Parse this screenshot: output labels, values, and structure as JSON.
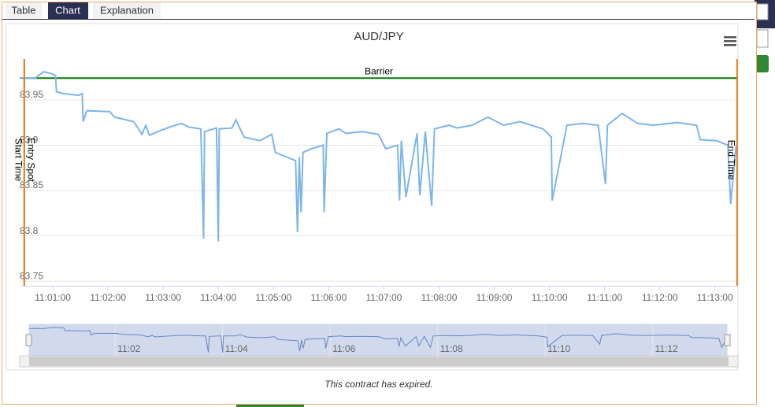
{
  "tabs": [
    "Table",
    "Chart",
    "Explanation"
  ],
  "footer": "This contract has expired.",
  "chart_data": {
    "type": "line",
    "title": "AUD/JPY",
    "color": "#7cb5ec",
    "x": [
      "11:00:24",
      "11:00:33",
      "11:00:41",
      "11:00:50",
      "11:00:58",
      "11:01:03",
      "11:01:04",
      "11:01:11",
      "11:01:28",
      "11:01:32",
      "11:01:33",
      "11:01:37",
      "11:02:02",
      "11:02:07",
      "11:02:28",
      "11:02:37",
      "11:02:41",
      "11:02:45",
      "11:02:54",
      "11:03:07",
      "11:03:20",
      "11:03:28",
      "11:03:41",
      "11:03:44",
      "11:03:45",
      "11:03:58",
      "11:04:00",
      "11:04:01",
      "11:04:15",
      "11:04:19",
      "11:04:28",
      "11:04:45",
      "11:04:58",
      "11:05:02",
      "11:05:24",
      "11:05:26",
      "11:05:28",
      "11:05:30",
      "11:05:32",
      "11:05:41",
      "11:05:54",
      "11:05:55",
      "11:05:58",
      "11:06:11",
      "11:06:19",
      "11:06:36",
      "11:06:54",
      "11:07:02",
      "11:07:15",
      "11:07:17",
      "11:07:19",
      "11:07:24",
      "11:07:36",
      "11:07:39",
      "11:07:45",
      "11:07:52",
      "11:07:55",
      "11:08:11",
      "11:08:19",
      "11:08:36",
      "11:08:53",
      "11:09:10",
      "11:09:28",
      "11:09:53",
      "11:10:02",
      "11:10:03",
      "11:10:19",
      "11:10:36",
      "11:10:53",
      "11:11:01",
      "11:11:03",
      "11:11:19",
      "11:11:36",
      "11:11:53",
      "11:12:19",
      "11:12:40",
      "11:12:44",
      "11:13:02",
      "11:13:14",
      "11:13:17",
      "11:13:23"
    ],
    "values": [
      83.974,
      83.974,
      83.974,
      83.981,
      83.979,
      83.977,
      83.959,
      83.957,
      83.955,
      83.957,
      83.926,
      83.938,
      83.937,
      83.931,
      83.926,
      83.912,
      83.922,
      83.911,
      83.915,
      83.92,
      83.924,
      83.92,
      83.918,
      83.797,
      83.915,
      83.919,
      83.794,
      83.918,
      83.919,
      83.928,
      83.909,
      83.905,
      83.912,
      83.892,
      83.883,
      83.804,
      83.887,
      83.826,
      83.892,
      83.896,
      83.9,
      83.826,
      83.913,
      83.918,
      83.913,
      83.915,
      83.912,
      83.896,
      83.9,
      83.839,
      83.905,
      83.843,
      83.913,
      83.845,
      83.915,
      83.833,
      83.918,
      83.922,
      83.919,
      83.922,
      83.931,
      83.922,
      83.926,
      83.918,
      83.909,
      83.839,
      83.922,
      83.924,
      83.922,
      83.857,
      83.922,
      83.935,
      83.924,
      83.922,
      83.925,
      83.922,
      83.906,
      83.905,
      83.9,
      83.835,
      83.9
    ],
    "xlim": [
      "11:00:24",
      "11:13:25"
    ],
    "xticks": [
      "11:01:00",
      "11:02:00",
      "11:03:00",
      "11:04:00",
      "11:05:00",
      "11:06:00",
      "11:07:00",
      "11:08:00",
      "11:09:00",
      "11:10:00",
      "11:11:00",
      "11:12:00",
      "11:13:00"
    ],
    "ylim": [
      83.745,
      83.995
    ],
    "yticks": [
      83.75,
      83.8,
      83.85,
      83.9,
      83.95
    ],
    "grid": true,
    "barrier": {
      "label": "Barrier",
      "value": 83.974,
      "color": "#0a7a0a"
    },
    "markers": [
      {
        "label": "Start Time",
        "x": "11:00:29",
        "side": "left"
      },
      {
        "label": "Entry Spot",
        "x": "11:00:29",
        "side": "right"
      },
      {
        "label": "End Time",
        "x": "11:13:24",
        "side": "left"
      }
    ],
    "marker_color": "#e98024",
    "navigator_xticks": [
      {
        "value": "11:02:00",
        "label": "11:02"
      },
      {
        "value": "11:04:00",
        "label": "11:04"
      },
      {
        "value": "11:06:00",
        "label": "11:06"
      },
      {
        "value": "11:08:00",
        "label": "11:08"
      },
      {
        "value": "11:10:00",
        "label": "11:10"
      },
      {
        "value": "11:12:00",
        "label": "11:12"
      }
    ]
  }
}
